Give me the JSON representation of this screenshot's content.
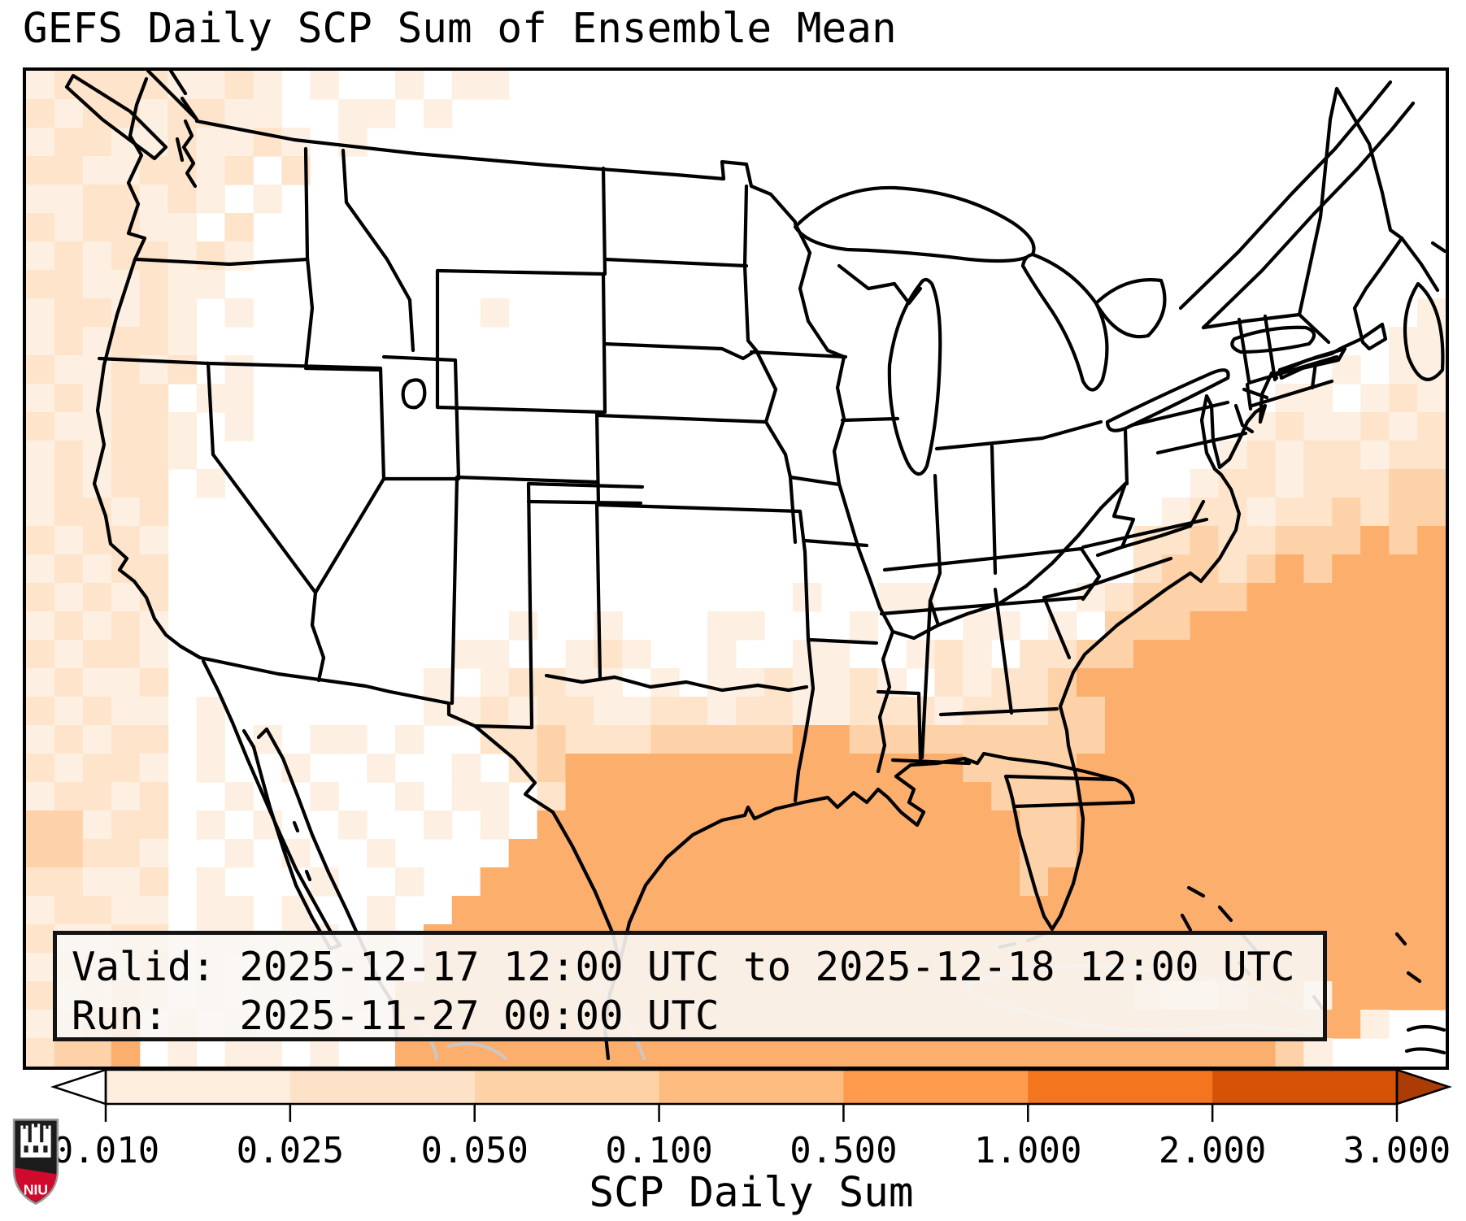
{
  "title": "GEFS Daily SCP Sum of Ensemble Mean",
  "info_box": {
    "valid_line": "Valid: 2025-12-17 12:00 UTC to 2025-12-18 12:00 UTC",
    "run_line": "Run:   2025-11-27 00:00 UTC"
  },
  "colorbar": {
    "title": "SCP Daily Sum",
    "tick_labels": [
      "0.010",
      "0.025",
      "0.050",
      "0.100",
      "0.500",
      "1.000",
      "2.000",
      "3.000"
    ],
    "boundaries": [
      0.01,
      0.025,
      0.05,
      0.1,
      0.5,
      1.0,
      2.0,
      3.0
    ],
    "segment_colors": [
      "#fdeedd",
      "#fde2c7",
      "#fdd2a6",
      "#fdbb80",
      "#fd9a4b",
      "#f3761f",
      "#d55206"
    ],
    "under_color": "#ffffff",
    "over_color": "#ab3c03",
    "outline_color": "#000000"
  },
  "logo": {
    "text": "NIU",
    "shield_black": "#1c1c1c",
    "shield_red": "#cf0a2c",
    "castle_color": "#ffffff"
  },
  "map": {
    "frame_color": "#000000",
    "land_color": "#ffffff",
    "border_line_color": "#000000",
    "foreign_line_color": "#c9c9c9",
    "grid_cols": 50,
    "grid_rows": 35,
    "palette": {
      "1": "#fdf0e2",
      "2": "#fde4cb",
      "3": "#fdd2a8",
      "4": "#fcae6c"
    },
    "field_rows": [
      [
        [
          0,
          "122221121"
        ],
        [
          10,
          "1"
        ],
        [
          13,
          "1"
        ],
        [
          15,
          "11"
        ]
      ],
      [
        [
          0,
          "212212211"
        ],
        [
          11,
          "11"
        ],
        [
          14,
          "1"
        ]
      ],
      [
        [
          0,
          "1221121121"
        ],
        [
          11,
          "1"
        ]
      ],
      [
        [
          0,
          "22112212"
        ],
        [
          9,
          "2"
        ]
      ],
      [
        [
          0,
          "1122121"
        ],
        [
          8,
          "1"
        ]
      ],
      [
        [
          0,
          "212211"
        ],
        [
          7,
          "2"
        ]
      ],
      [
        [
          0,
          "12122121"
        ]
      ],
      [
        [
          0,
          "2211211"
        ]
      ],
      [
        [
          0,
          "122121"
        ],
        [
          7,
          "1"
        ],
        [
          16,
          "1"
        ],
        [
          49,
          "1"
        ]
      ],
      [
        [
          0,
          "121221"
        ],
        [
          48,
          "11"
        ]
      ],
      [
        [
          0,
          "211212"
        ],
        [
          7,
          "1"
        ],
        [
          46,
          "1"
        ],
        [
          48,
          "11"
        ]
      ],
      [
        [
          0,
          "12122"
        ],
        [
          6,
          "11"
        ],
        [
          44,
          "11"
        ],
        [
          47,
          "121"
        ]
      ],
      [
        [
          0,
          "211221"
        ],
        [
          7,
          "1"
        ],
        [
          43,
          "1211212"
        ]
      ],
      [
        [
          0,
          "121221"
        ],
        [
          42,
          "12122122"
        ]
      ],
      [
        [
          0,
          "12122"
        ],
        [
          6,
          "1"
        ],
        [
          41,
          "122122233"
        ]
      ],
      [
        [
          0,
          "12212"
        ],
        [
          40,
          "1221223233"
        ]
      ],
      [
        [
          0,
          "21221"
        ],
        [
          39,
          "22322333434"
        ]
      ],
      [
        [
          0,
          "12122"
        ],
        [
          39,
          "23323434444"
        ]
      ],
      [
        [
          0,
          "21212"
        ],
        [
          27,
          "1"
        ],
        [
          30,
          "11"
        ],
        [
          37,
          "1"
        ],
        [
          38,
          "233334444444"
        ]
      ],
      [
        [
          0,
          "12121"
        ],
        [
          17,
          "1"
        ],
        [
          20,
          "1"
        ],
        [
          24,
          "11"
        ],
        [
          29,
          "1"
        ],
        [
          33,
          "11"
        ],
        [
          36,
          "1"
        ],
        [
          38,
          "333444444444"
        ]
      ],
      [
        [
          0,
          "21221"
        ],
        [
          15,
          "11"
        ],
        [
          19,
          "121"
        ],
        [
          24,
          "1"
        ],
        [
          27,
          "11"
        ],
        [
          31,
          "121"
        ],
        [
          35,
          "22"
        ],
        [
          37,
          "3344444444444"
        ]
      ],
      [
        [
          0,
          "12112"
        ],
        [
          14,
          "1"
        ],
        [
          16,
          "12211"
        ],
        [
          22,
          "1"
        ],
        [
          24,
          "1121121"
        ],
        [
          32,
          "2122"
        ],
        [
          36,
          "34444444444444"
        ]
      ],
      [
        [
          0,
          "21211"
        ],
        [
          6,
          "1"
        ],
        [
          14,
          "112122112212211222"
        ],
        [
          32,
          "1222"
        ],
        [
          36,
          "33"
        ],
        [
          38,
          "444444444444"
        ]
      ],
      [
        [
          0,
          "12122"
        ],
        [
          6,
          "1"
        ],
        [
          8,
          "1"
        ],
        [
          10,
          "11"
        ],
        [
          13,
          "1"
        ],
        [
          16,
          "2232223"
        ],
        [
          23,
          "33334433"
        ],
        [
          31,
          "333333"
        ],
        [
          37,
          "3"
        ],
        [
          38,
          "444444444444"
        ]
      ],
      [
        [
          0,
          "21221"
        ],
        [
          6,
          "1"
        ],
        [
          9,
          "1"
        ],
        [
          12,
          "1"
        ],
        [
          15,
          "1"
        ],
        [
          17,
          "23"
        ],
        [
          19,
          "44444444444444"
        ],
        [
          33,
          "3"
        ],
        [
          34,
          "33"
        ],
        [
          36,
          "3"
        ],
        [
          37,
          "4444444444444"
        ]
      ],
      [
        [
          0,
          "12212"
        ],
        [
          7,
          "1"
        ],
        [
          10,
          "1"
        ],
        [
          13,
          "1"
        ],
        [
          15,
          "11"
        ],
        [
          18,
          "2"
        ],
        [
          19,
          "44444444444444"
        ],
        [
          33,
          "4"
        ],
        [
          34,
          "333"
        ],
        [
          37,
          "4444444444444"
        ]
      ],
      [
        [
          0,
          "33122"
        ],
        [
          6,
          "1"
        ],
        [
          8,
          "1"
        ],
        [
          11,
          "1"
        ],
        [
          14,
          "1"
        ],
        [
          16,
          "1"
        ],
        [
          18,
          "444444444444444"
        ],
        [
          33,
          "44"
        ],
        [
          35,
          "33"
        ],
        [
          37,
          "4444444444444"
        ]
      ],
      [
        [
          0,
          "33221"
        ],
        [
          7,
          "1"
        ],
        [
          9,
          "1"
        ],
        [
          12,
          "1"
        ],
        [
          17,
          "4444444444444444"
        ],
        [
          33,
          "443"
        ],
        [
          36,
          "3"
        ],
        [
          37,
          "4444444444444"
        ]
      ],
      [
        [
          0,
          "22112"
        ],
        [
          6,
          "1"
        ],
        [
          10,
          "1"
        ],
        [
          13,
          "1"
        ],
        [
          16,
          "44444444444444444"
        ],
        [
          33,
          "44"
        ],
        [
          35,
          "34"
        ],
        [
          37,
          "4444444444444"
        ]
      ],
      [
        [
          0,
          "12211"
        ],
        [
          6,
          "11"
        ],
        [
          9,
          "1"
        ],
        [
          12,
          "1"
        ],
        [
          15,
          "444444444444444444"
        ],
        [
          33,
          "444"
        ],
        [
          36,
          "44"
        ],
        [
          38,
          "444444444444"
        ]
      ],
      [
        [
          0,
          "21122"
        ],
        [
          6,
          "11"
        ],
        [
          9,
          "11"
        ],
        [
          12,
          "1"
        ],
        [
          14,
          "444444444444444444444444444444444444"
        ]
      ],
      [
        [
          0,
          "12213"
        ],
        [
          6,
          "1"
        ],
        [
          8,
          "11"
        ],
        [
          11,
          "1"
        ],
        [
          14,
          "444444444444444444444444444444444444"
        ]
      ],
      [
        [
          0,
          "21232"
        ],
        [
          6,
          "1"
        ],
        [
          8,
          "1"
        ],
        [
          11,
          "1"
        ],
        [
          13,
          "44444444444444444444444444"
        ],
        [
          39,
          "3223"
        ],
        [
          43,
          "44"
        ],
        [
          45,
          "1"
        ],
        [
          46,
          "4444"
        ]
      ],
      [
        [
          0,
          "1234"
        ],
        [
          5,
          "2"
        ],
        [
          7,
          "1"
        ],
        [
          10,
          "1"
        ],
        [
          13,
          "444444444444444444444444444444444"
        ],
        [
          46,
          "41"
        ]
      ],
      [
        [
          0,
          "2334"
        ],
        [
          5,
          "1"
        ],
        [
          7,
          "11"
        ],
        [
          10,
          "1"
        ],
        [
          13,
          "4444444444444444444444444444444"
        ],
        [
          44,
          "31"
        ]
      ]
    ]
  }
}
